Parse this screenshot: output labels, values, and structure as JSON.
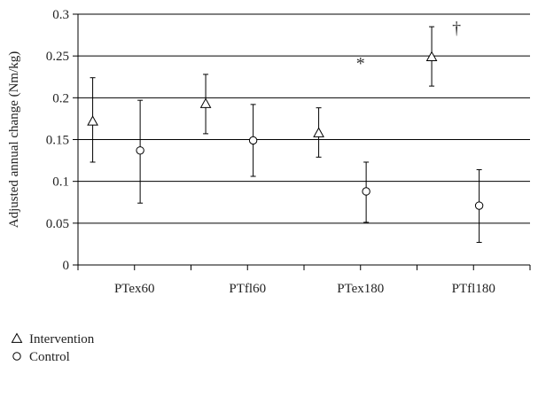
{
  "chart_data": {
    "type": "scatter",
    "categories": [
      "PTex60",
      "PTfl60",
      "PTex180",
      "PTfl180"
    ],
    "ylabel": "Adjusted annual change (Nm/kg)",
    "ylim": [
      0,
      0.3
    ],
    "yticks": [
      "0",
      "0.05",
      "0.1",
      "0.15",
      "0.2",
      "0.25",
      "0.3"
    ],
    "grid": true,
    "legend_position": "bottom-left",
    "series": [
      {
        "name": "Intervention",
        "marker": "triangle",
        "values": [
          0.172,
          0.193,
          0.158,
          0.249
        ],
        "lower": [
          0.123,
          0.157,
          0.129,
          0.214
        ],
        "upper": [
          0.224,
          0.228,
          0.188,
          0.285
        ]
      },
      {
        "name": "Control",
        "marker": "circle",
        "values": [
          0.137,
          0.149,
          0.088,
          0.071
        ],
        "lower": [
          0.074,
          0.106,
          0.051,
          0.027
        ],
        "upper": [
          0.197,
          0.192,
          0.123,
          0.114
        ]
      }
    ],
    "annotations": [
      {
        "text": "*",
        "category": "PTex180",
        "y": 0.243
      },
      {
        "text": "†",
        "category": "PTfl180",
        "y": 0.285
      }
    ]
  }
}
